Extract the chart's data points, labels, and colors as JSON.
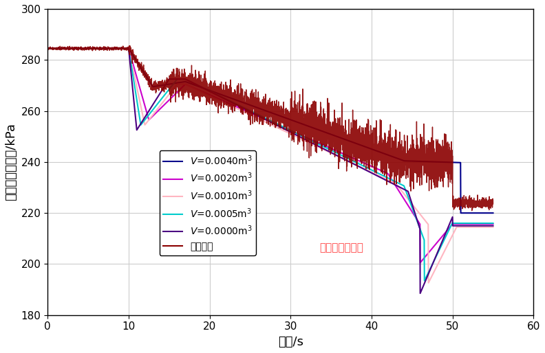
{
  "title": "",
  "xlabel": "时间/s",
  "ylabel": "发动机供油压力/kPa",
  "xlim": [
    0,
    60
  ],
  "ylim": [
    180,
    300
  ],
  "yticks": [
    180,
    200,
    220,
    240,
    260,
    280,
    300
  ],
  "xticks": [
    0,
    10,
    20,
    30,
    40,
    50,
    60
  ],
  "legend_labels": [
    "V=0.0040m3",
    "V=0.0020m3",
    "V=0.0010m3",
    "V=0.0005m3",
    "V=0.0000m3",
    "试验压力"
  ],
  "line_colors": [
    "#00008B",
    "#CC00CC",
    "#FFB6C1",
    "#00CCCC",
    "#4B0082",
    "#8B0000"
  ],
  "watermark": "江苏华云流量计",
  "watermark_color": "#FF4444",
  "background_color": "#FFFFFF",
  "grid_color": "#CCCCCC"
}
